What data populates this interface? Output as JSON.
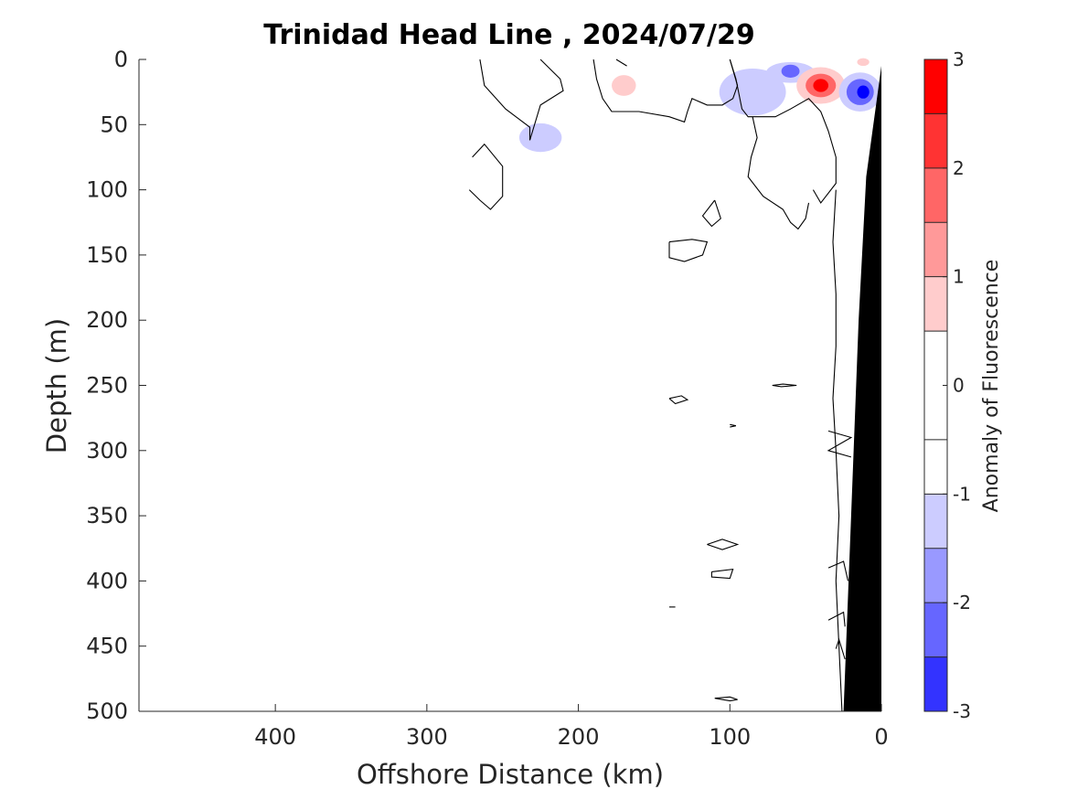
{
  "chart_data": {
    "type": "contour",
    "title": "Trinidad Head Line , 2024/07/29",
    "xlabel": "Offshore Distance (km)",
    "ylabel": "Depth (m)",
    "xlim": [
      490,
      0
    ],
    "ylim": [
      0,
      500
    ],
    "x_reversed": true,
    "y_reversed": true,
    "x_ticks": [
      400,
      300,
      200,
      100,
      0
    ],
    "y_ticks": [
      0,
      50,
      100,
      150,
      200,
      250,
      300,
      350,
      400,
      450,
      500
    ],
    "colorbar": {
      "label": "Anomaly of Fluorescence",
      "range": [
        -3,
        3
      ],
      "ticks": [
        3,
        2,
        1,
        0,
        -1,
        -2,
        -3
      ],
      "levels": [
        -3,
        -2.5,
        -2,
        -1.5,
        -1,
        -0.5,
        0.5,
        1,
        1.5,
        2,
        2.5,
        3
      ],
      "colors": [
        "#0000ff",
        "#3333ff",
        "#6666ff",
        "#9999ff",
        "#ccccff",
        "#ffffff",
        "#ffffff",
        "#ffcccc",
        "#ff9999",
        "#ff6666",
        "#ff3333",
        "#ff0000"
      ]
    },
    "bathymetry": {
      "color": "#000000",
      "x": [
        0,
        10,
        15,
        20,
        25,
        0
      ],
      "y": [
        5,
        90,
        200,
        350,
        500,
        500
      ]
    },
    "anomaly_patches": [
      {
        "x": 170,
        "y": 20,
        "value": 1,
        "rx": 8,
        "ry": 8
      },
      {
        "x": 225,
        "y": 60,
        "value": -1,
        "rx": 14,
        "ry": 11
      },
      {
        "x": 85,
        "y": 25,
        "value": -1,
        "rx": 22,
        "ry": 18
      },
      {
        "x": 60,
        "y": 10,
        "value": -1,
        "rx": 16,
        "ry": 8
      },
      {
        "x": 60,
        "y": 9,
        "value": -2,
        "rx": 6,
        "ry": 5
      },
      {
        "x": 40,
        "y": 20,
        "value": 1,
        "rx": 16,
        "ry": 14
      },
      {
        "x": 40,
        "y": 20,
        "value": 2,
        "rx": 10,
        "ry": 9
      },
      {
        "x": 40,
        "y": 20,
        "value": 3,
        "rx": 5,
        "ry": 5
      },
      {
        "x": 14,
        "y": 25,
        "value": -1,
        "rx": 14,
        "ry": 15
      },
      {
        "x": 14,
        "y": 25,
        "value": -2,
        "rx": 9,
        "ry": 10
      },
      {
        "x": 12,
        "y": 25,
        "value": -3,
        "rx": 4,
        "ry": 5
      },
      {
        "x": 12,
        "y": 2,
        "value": 1,
        "rx": 4,
        "ry": 3
      }
    ],
    "zero_contours": [
      [
        [
          265,
          0
        ],
        [
          262,
          20
        ],
        [
          248,
          38
        ],
        [
          232,
          52
        ],
        [
          232,
          62
        ],
        [
          225,
          35
        ],
        [
          210,
          24
        ],
        [
          212,
          15
        ],
        [
          225,
          0
        ]
      ],
      [
        [
          270,
          75
        ],
        [
          262,
          65
        ],
        [
          250,
          82
        ],
        [
          250,
          105
        ],
        [
          258,
          115
        ],
        [
          265,
          108
        ],
        [
          272,
          100
        ]
      ],
      [
        [
          190,
          0
        ],
        [
          188,
          15
        ],
        [
          184,
          30
        ],
        [
          178,
          40
        ],
        [
          160,
          40
        ],
        [
          140,
          44
        ],
        [
          130,
          48
        ],
        [
          128,
          40
        ],
        [
          125,
          30
        ],
        [
          115,
          35
        ],
        [
          105,
          35
        ],
        [
          98,
          30
        ],
        [
          95,
          20
        ],
        [
          100,
          0
        ]
      ],
      [
        [
          168,
          5
        ],
        [
          175,
          0
        ]
      ],
      [
        [
          100,
          0
        ],
        [
          96,
          15
        ],
        [
          92,
          38
        ],
        [
          88,
          44
        ],
        [
          70,
          44
        ],
        [
          60,
          38
        ],
        [
          48,
          30
        ],
        [
          40,
          40
        ],
        [
          35,
          55
        ],
        [
          30,
          75
        ],
        [
          30,
          95
        ],
        [
          40,
          110
        ],
        [
          45,
          100
        ]
      ],
      [
        [
          85,
          44
        ],
        [
          82,
          60
        ],
        [
          86,
          75
        ],
        [
          88,
          90
        ],
        [
          78,
          105
        ],
        [
          65,
          115
        ],
        [
          60,
          125
        ],
        [
          55,
          130
        ],
        [
          50,
          122
        ],
        [
          48,
          110
        ]
      ],
      [
        [
          110,
          108
        ],
        [
          106,
          122
        ],
        [
          112,
          128
        ],
        [
          118,
          120
        ],
        [
          110,
          108
        ]
      ],
      [
        [
          140,
          140
        ],
        [
          125,
          138
        ],
        [
          115,
          140
        ],
        [
          118,
          150
        ],
        [
          130,
          155
        ],
        [
          140,
          152
        ],
        [
          140,
          140
        ]
      ],
      [
        [
          30,
          100
        ],
        [
          32,
          140
        ],
        [
          30,
          180
        ],
        [
          30,
          220
        ],
        [
          32,
          260
        ],
        [
          30,
          300
        ],
        [
          28,
          350
        ],
        [
          30,
          400
        ],
        [
          28,
          450
        ],
        [
          26,
          500
        ]
      ],
      [
        [
          140,
          260
        ],
        [
          132,
          258
        ],
        [
          128,
          261
        ],
        [
          136,
          264
        ],
        [
          140,
          260
        ]
      ],
      [
        [
          72,
          250
        ],
        [
          65,
          249
        ],
        [
          56,
          250
        ],
        [
          66,
          251
        ],
        [
          72,
          250
        ]
      ],
      [
        [
          100,
          280
        ],
        [
          96,
          281
        ],
        [
          100,
          282
        ]
      ],
      [
        [
          35,
          285
        ],
        [
          20,
          290
        ],
        [
          35,
          300
        ],
        [
          20,
          305
        ]
      ],
      [
        [
          115,
          372
        ],
        [
          105,
          368
        ],
        [
          95,
          372
        ],
        [
          105,
          376
        ],
        [
          115,
          372
        ]
      ],
      [
        [
          112,
          393
        ],
        [
          98,
          391
        ],
        [
          100,
          398
        ],
        [
          112,
          397
        ],
        [
          112,
          393
        ]
      ],
      [
        [
          140,
          420
        ],
        [
          136,
          420
        ]
      ],
      [
        [
          35,
          390
        ],
        [
          25,
          385
        ],
        [
          22,
          400
        ]
      ],
      [
        [
          35,
          430
        ],
        [
          25,
          424
        ],
        [
          24,
          435
        ]
      ],
      [
        [
          30,
          452
        ],
        [
          28,
          445
        ],
        [
          24,
          460
        ]
      ],
      [
        [
          110,
          490
        ],
        [
          100,
          489
        ],
        [
          95,
          491
        ],
        [
          100,
          492
        ],
        [
          110,
          490
        ]
      ]
    ]
  }
}
